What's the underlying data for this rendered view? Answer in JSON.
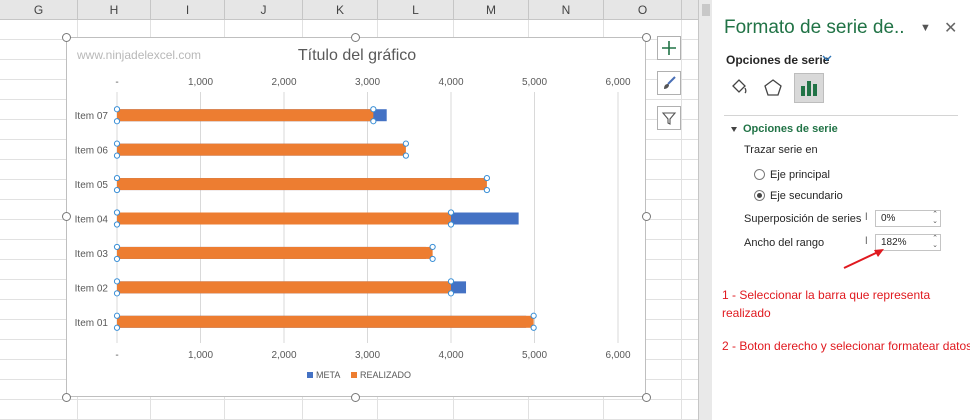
{
  "sheet": {
    "columns": [
      "G",
      "H",
      "I",
      "J",
      "K",
      "L",
      "M",
      "N",
      "O"
    ]
  },
  "chart": {
    "watermark": "www.ninjadelexcel.com",
    "chart_data": {
      "type": "bar",
      "orientation": "horizontal",
      "title": "Título del gráfico",
      "categories": [
        "Item 01",
        "Item 02",
        "Item 03",
        "Item 04",
        "Item 05",
        "Item 06",
        "Item 07"
      ],
      "series": [
        {
          "name": "META",
          "color": "#4472c4",
          "axis": "primary",
          "values": [
            4900,
            4180,
            3700,
            4810,
            4420,
            3420,
            3230
          ]
        },
        {
          "name": "REALIZADO",
          "color": "#ed7d31",
          "axis": "secondary",
          "selected": true,
          "values": [
            4990,
            4000,
            3780,
            4000,
            4430,
            3460,
            3070
          ]
        }
      ],
      "xlim": [
        0,
        6000
      ],
      "xticks": [
        "-",
        "1,000",
        "2,000",
        "3,000",
        "4,000",
        "5,000",
        "6,000"
      ],
      "grid": true,
      "legend": "bottom"
    }
  },
  "chart_tools": {
    "add_element": "chart-elements-plus",
    "styles": "chart-styles-brush",
    "filter": "chart-filter-funnel"
  },
  "pane": {
    "title": "Formato de serie de..",
    "tab_label": "Opciones de serie",
    "section_title": "Opciones de serie",
    "plot_on_label": "Trazar serie en",
    "radio_primary": "Eje principal",
    "radio_secondary": "Eje secundario",
    "overlap_label": "Superposición de series",
    "overlap_value": "0%",
    "gap_label": "Ancho del rango",
    "gap_value": "182%",
    "note_1": "1 - Seleccionar la barra que representa realizado",
    "note_2": "2 - Boton derecho y selecionar formatear datos",
    "accent": "#217346",
    "note_color": "#e0191f"
  }
}
